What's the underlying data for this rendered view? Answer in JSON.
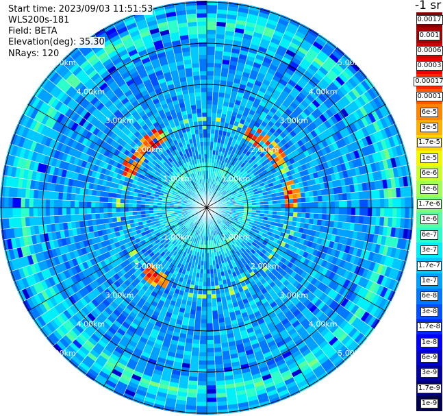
{
  "header": {
    "start_time": "Start time: 2023/09/03 11:51:53",
    "instrument": "WLS200s-181",
    "field": "Field: BETA",
    "elevation": "Elevation(deg): 35.30",
    "nrays": "NRays: 120"
  },
  "colorbar": {
    "title": "-1 sr",
    "labels": [
      "0.0017",
      "0.001",
      "0.0006",
      "0.0003",
      "0.00017",
      "0.0001",
      "6e-5",
      "3e-5",
      "1.7e-5",
      "1e-5",
      "6e-6",
      "3e-6",
      "1.7e-6",
      "1e-6",
      "6e-7",
      "3e-7",
      "1.7e-7",
      "1e-7",
      "6e-8",
      "3e-8",
      "1.7e-8",
      "1e-8",
      "6e-9",
      "3e-9",
      "1.7e-9",
      "1e-9"
    ],
    "colors": [
      "#800000",
      "#a80000",
      "#d00000",
      "#f00000",
      "#ff2800",
      "#ff5800",
      "#ff8400",
      "#ffb000",
      "#ffd800",
      "#f4f800",
      "#caff2c",
      "#a4ff54",
      "#7cff7c",
      "#54ffa4",
      "#2cffca",
      "#00f0f8",
      "#00c8ff",
      "#00a0ff",
      "#0078ff",
      "#0050ff",
      "#0028ff",
      "#0000f8",
      "#0000cc",
      "#0000a0",
      "#000078",
      "#00004c"
    ]
  },
  "chart_data": {
    "type": "heatmap",
    "projection": "polar-ppi",
    "field": "BETA",
    "units": "sr-1",
    "n_rays": 120,
    "elevation_deg": 35.3,
    "range_max_km": 5.0,
    "range_ring_labels": [
      "1.00km",
      "2.00km",
      "3.00km",
      "4.00km",
      "5.00km"
    ],
    "range_rings_km": [
      1,
      2,
      3,
      4,
      5
    ],
    "spoke_angles_deg": [
      0,
      30,
      60,
      90,
      120,
      150,
      180,
      210,
      240,
      270,
      300,
      330
    ],
    "typical_background": "3e-8 to 1e-7",
    "features": [
      {
        "description": "ring of enhanced backscatter",
        "range_km": 4.5,
        "level": "1.7e-6 to 1e-5"
      },
      {
        "description": "near-field enhancement",
        "range_km": 1.0,
        "level": "1.7e-6 to 6e-6"
      },
      {
        "description": "strong returns",
        "range_km": 2.1,
        "azimuths_deg": [
          35,
          50,
          80,
          215,
          300,
          320
        ],
        "level": "3e-5 to 0.0003"
      }
    ]
  }
}
